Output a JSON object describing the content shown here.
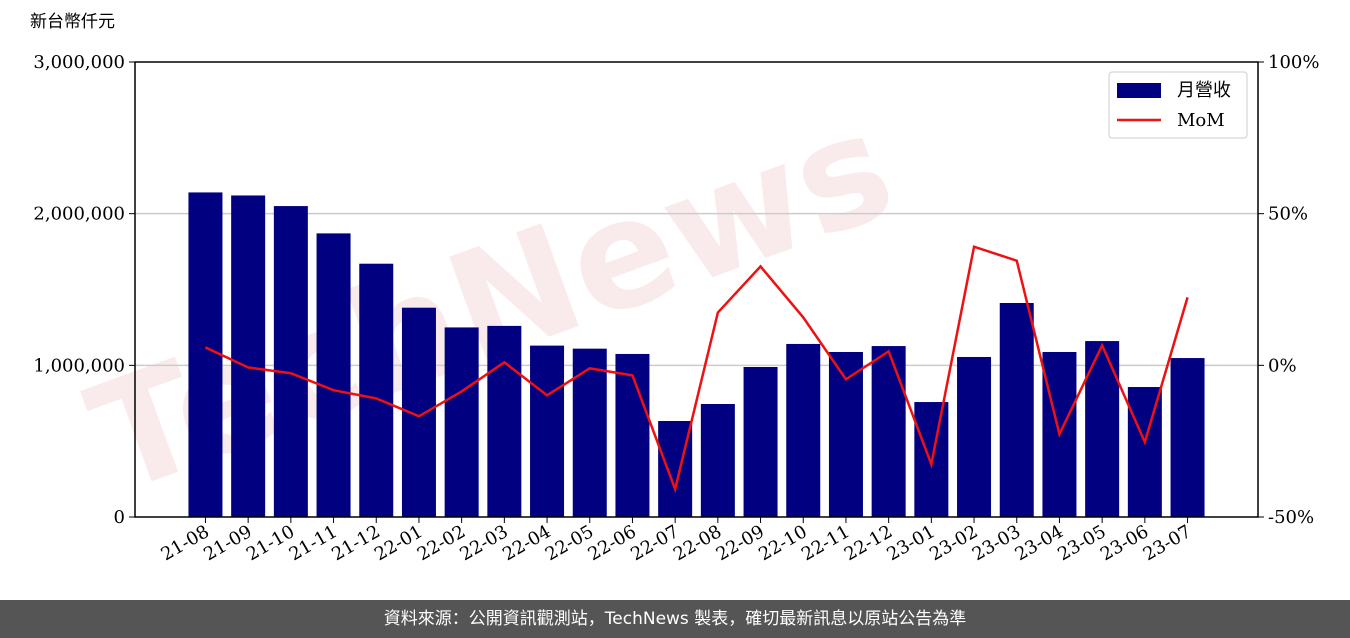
{
  "chart_data": {
    "type": "bar_line",
    "unit_label": "新台幣仟元",
    "watermark": "TechNews",
    "categories": [
      "21-08",
      "21-09",
      "21-10",
      "21-11",
      "21-12",
      "22-01",
      "22-02",
      "22-03",
      "22-04",
      "22-05",
      "22-06",
      "22-07",
      "22-08",
      "22-09",
      "22-10",
      "22-11",
      "22-12",
      "23-01",
      "23-02",
      "23-03",
      "23-04",
      "23-05",
      "23-06",
      "23-07"
    ],
    "series": [
      {
        "name": "月營收",
        "type": "bar",
        "color": "#000080",
        "values": [
          2140000,
          2120000,
          2050000,
          1870000,
          1670000,
          1380000,
          1250000,
          1260000,
          1130000,
          1110000,
          1075000,
          633000,
          745000,
          989000,
          1141000,
          1088000,
          1127000,
          758000,
          1055000,
          1411000,
          1088000,
          1160000,
          857000,
          1048000
        ]
      },
      {
        "name": "MoM",
        "type": "line",
        "axis": "y2",
        "color": "#ee1111",
        "values": [
          5.9,
          -0.7,
          -2.6,
          -8.2,
          -10.9,
          -16.8,
          -8.6,
          1.0,
          -9.9,
          -1.0,
          -3.3,
          -40.8,
          17.4,
          32.6,
          15.8,
          -4.6,
          4.6,
          -32.6,
          39.1,
          34.5,
          -22.7,
          6.6,
          -25.3,
          22.4
        ]
      }
    ],
    "ylim": [
      0,
      3000000
    ],
    "yticks": [
      {
        "value": 0,
        "label": "0"
      },
      {
        "value": 1000000,
        "label": "1,000,000"
      },
      {
        "value": 2000000,
        "label": "2,000,000"
      },
      {
        "value": 3000000,
        "label": "3,000,000"
      }
    ],
    "y2lim": [
      -50,
      100
    ],
    "y2ticks": [
      {
        "value": -50,
        "label": "-50%"
      },
      {
        "value": 0,
        "label": "0%"
      },
      {
        "value": 50,
        "label": "50%"
      },
      {
        "value": 100,
        "label": "100%"
      }
    ],
    "grid": true,
    "legend": "upper right",
    "footer": "資料來源：公開資訊觀測站，TechNews 製表，確切最新訊息以原站公告為準"
  }
}
